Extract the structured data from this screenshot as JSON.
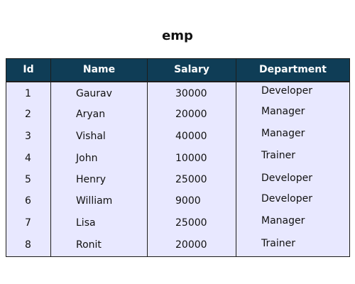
{
  "title": "emp",
  "colors": {
    "header_bg": "#0f3d56",
    "header_text": "#ffffff",
    "body_bg": "#e8e8ff",
    "border": "#1d1d1d"
  },
  "columns": [
    "Id",
    "Name",
    "Salary",
    "Department"
  ],
  "rows": [
    {
      "id": "1",
      "name": "Gaurav",
      "salary": "30000",
      "department": "Developer"
    },
    {
      "id": "2",
      "name": "Aryan",
      "salary": "20000",
      "department": "Manager"
    },
    {
      "id": "3",
      "name": "Vishal",
      "salary": "40000",
      "department": "Manager"
    },
    {
      "id": "4",
      "name": "John",
      "salary": "10000",
      "department": "Trainer"
    },
    {
      "id": "5",
      "name": "Henry",
      "salary": "25000",
      "department": "Developer"
    },
    {
      "id": "6",
      "name": "William",
      "salary": "9000",
      "department": "Developer"
    },
    {
      "id": "7",
      "name": "Lisa",
      "salary": "25000",
      "department": "Manager"
    },
    {
      "id": "8",
      "name": "Ronit",
      "salary": "20000",
      "department": "Trainer"
    }
  ]
}
